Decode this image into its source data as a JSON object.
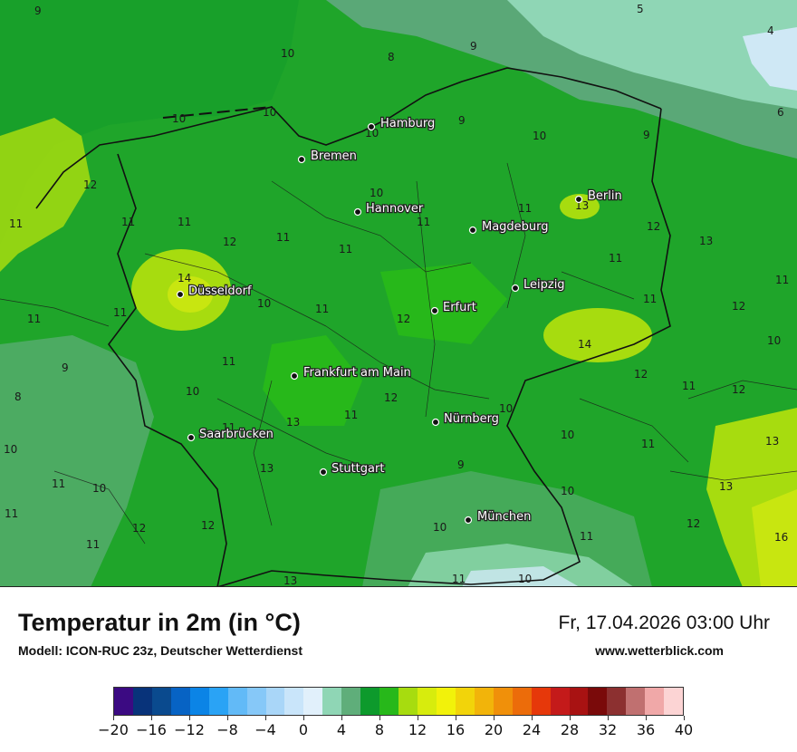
{
  "title": "Temperatur in 2m (in °C)",
  "model": "Modell: ICON-RUC 23z, Deutscher Wetterdienst",
  "datetime": "Fr, 17.04.2026 03:00 Uhr",
  "website": "www.wetterblick.com",
  "colors": {
    "sea": "#1a9c2c",
    "base_green": "#27ad1c",
    "dark_green": "#0d9a2c",
    "mid_green": "#1fb81a",
    "light_green": "#a7dc0f",
    "grey_green": "#5fae7a",
    "mint": "#90d8b0",
    "pale": "#cfe8f5",
    "lime": "#c8e610"
  },
  "colorbar": {
    "colors": [
      "#3b0a82",
      "#08337a",
      "#0a4a8e",
      "#0763c4",
      "#0b84e6",
      "#2aa3f5",
      "#62baf7",
      "#86c8f8",
      "#a9d6f8",
      "#c9e5fa",
      "#e1f0fb",
      "#8fd6b5",
      "#5fae7a",
      "#0d9a2c",
      "#27b81a",
      "#a7dc0f",
      "#d7ec0d",
      "#f2f20a",
      "#f2d40a",
      "#f2b40a",
      "#f0900a",
      "#ec6c0a",
      "#e6380a",
      "#c41a1a",
      "#a81212",
      "#7a0a0a",
      "#8c3030",
      "#c07070",
      "#f0a8a8",
      "#fcd4d4"
    ],
    "ticks": [
      "−20",
      "−16",
      "−12",
      "−8",
      "−4",
      "0",
      "4",
      "8",
      "12",
      "16",
      "20",
      "24",
      "28",
      "32",
      "36",
      "40"
    ]
  },
  "cities": [
    {
      "name": "Hamburg"
    },
    {
      "name": "Bremen"
    },
    {
      "name": "Berlin"
    },
    {
      "name": "Hannover"
    },
    {
      "name": "Magdeburg"
    },
    {
      "name": "Düsseldorf"
    },
    {
      "name": "Leipzig"
    },
    {
      "name": "Erfurt"
    },
    {
      "name": "Frankfurt am Main"
    },
    {
      "name": "Nürnberg"
    },
    {
      "name": "Saarbrücken"
    },
    {
      "name": "Stuttgart"
    },
    {
      "name": "München"
    }
  ],
  "isotherm_labels": [
    "9",
    "5",
    "4",
    "10",
    "8",
    "9",
    "6",
    "10",
    "10",
    "10",
    "9",
    "9",
    "12",
    "10",
    "11",
    "11",
    "11",
    "11",
    "11",
    "11",
    "12",
    "13",
    "12",
    "10",
    "11",
    "11",
    "13",
    "14",
    "11",
    "10",
    "11",
    "12",
    "11",
    "11",
    "12",
    "11",
    "12",
    "14",
    "10",
    "11",
    "12",
    "9",
    "11",
    "8",
    "10",
    "12",
    "11",
    "11",
    "10",
    "10",
    "13",
    "11",
    "13",
    "13",
    "9",
    "10",
    "11",
    "10",
    "13",
    "10",
    "12",
    "12",
    "11",
    "11",
    "10",
    "16",
    "13",
    "11",
    "11",
    "10",
    "12"
  ]
}
